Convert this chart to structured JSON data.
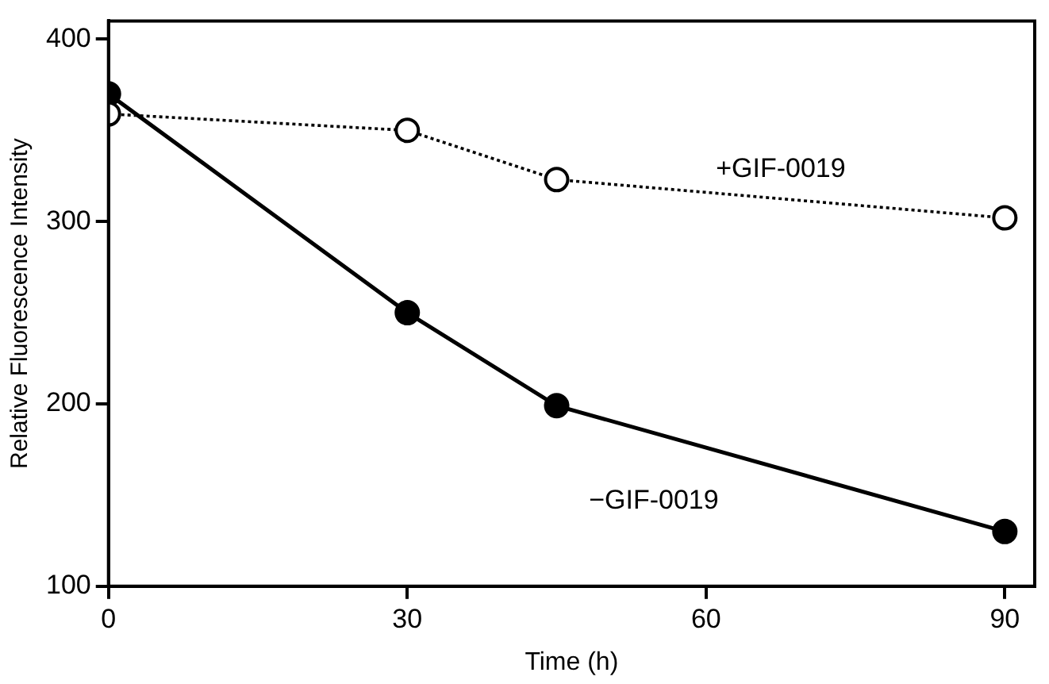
{
  "chart_data": {
    "type": "line",
    "xlabel": "Time (h)",
    "ylabel": "Relative Fluorescence Intensity",
    "xlim": [
      0,
      93
    ],
    "xticks": [
      0,
      30,
      60,
      90
    ],
    "ylim": [
      100,
      410
    ],
    "yticks": [
      100,
      200,
      300,
      400
    ],
    "grid": false,
    "legend": false,
    "marker": "circle",
    "series": [
      {
        "name": "+GIF-0019",
        "color": "#000000",
        "line_style": "dotted",
        "x": [
          0,
          30,
          45,
          90
        ],
        "values": [
          359,
          350,
          323,
          302
        ]
      },
      {
        "name": "−GIF-0019",
        "color": "#000000",
        "line_style": "solid",
        "x": [
          0,
          30,
          45,
          90
        ],
        "values": [
          370,
          250,
          199,
          130
        ]
      }
    ]
  }
}
